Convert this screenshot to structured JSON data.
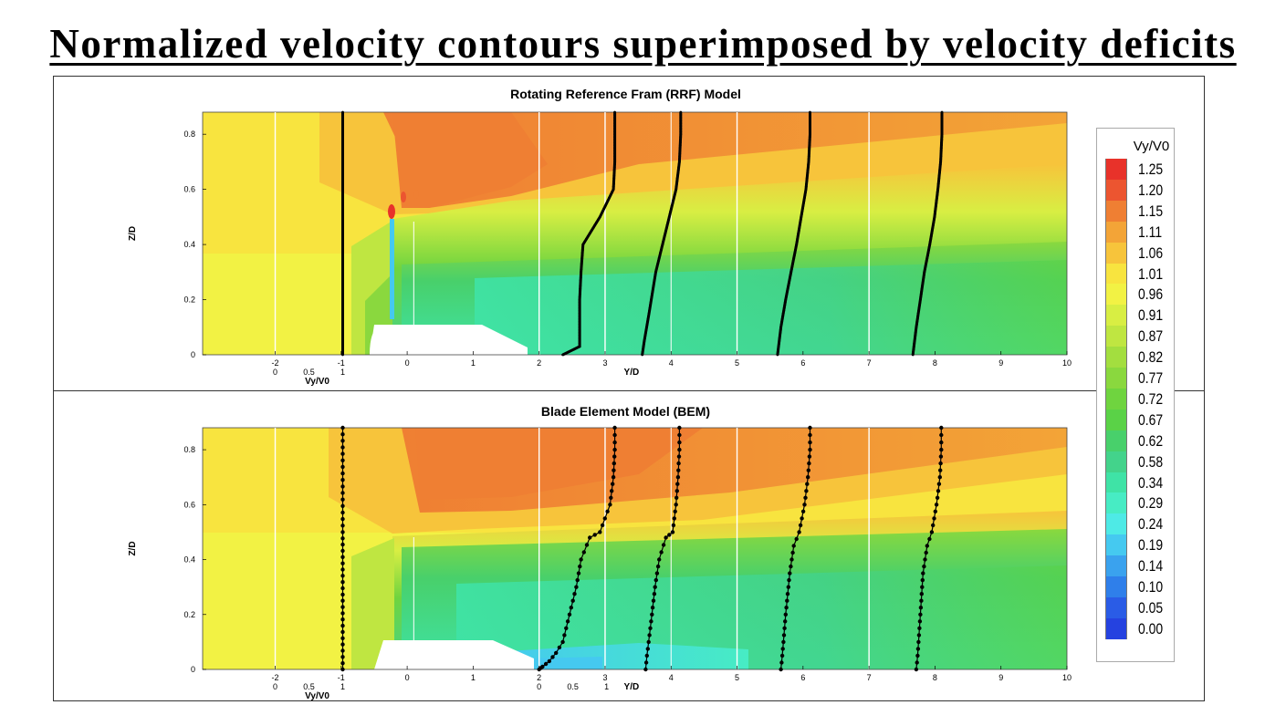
{
  "page_title": "Normalized velocity contours superimposed by velocity deficits",
  "colorbar": {
    "title": "Vy/V0",
    "levels": [
      "1.25",
      "1.20",
      "1.15",
      "1.11",
      "1.06",
      "1.01",
      "0.96",
      "0.91",
      "0.87",
      "0.82",
      "0.77",
      "0.72",
      "0.67",
      "0.62",
      "0.58",
      "0.34",
      "0.29",
      "0.24",
      "0.19",
      "0.14",
      "0.10",
      "0.05",
      "0.00"
    ],
    "colors": [
      "#e8322a",
      "#ec5530",
      "#ef7f33",
      "#f3a437",
      "#f7c43b",
      "#f8e43f",
      "#f2f244",
      "#d8ee43",
      "#bfe641",
      "#a3de3f",
      "#8ad83e",
      "#6fd43f",
      "#5ad247",
      "#48d06b",
      "#43d38b",
      "#3fe3a6",
      "#47ecc4",
      "#4eeae6",
      "#45c9f0",
      "#3aa2ee",
      "#2f7fea",
      "#2a5ce6",
      "#2542e0"
    ]
  },
  "chart_data": [
    {
      "type": "heatmap",
      "title": "Rotating Reference Fram (RRF) Model",
      "xlabel": "Y/D",
      "ylabel": "Z/D",
      "xlim": [
        -3.1,
        10
      ],
      "ylim": [
        0,
        0.88
      ],
      "x_ticks": [
        -2,
        -1,
        0,
        1,
        2,
        3,
        4,
        5,
        6,
        7,
        8,
        9,
        10
      ],
      "y_ticks": [
        "0",
        "0.2",
        "0.4",
        "0.6",
        "0.8"
      ],
      "profile_axis": {
        "label": "Vy/V0",
        "ticks": [
          "0",
          "0.5",
          "1"
        ]
      },
      "profile_stations": [
        -2,
        2,
        3,
        5,
        7
      ],
      "profiles": [
        {
          "station": -2,
          "points": [
            [
              1.0,
              0
            ],
            [
              1.0,
              0.5
            ],
            [
              1.0,
              0.88
            ]
          ]
        },
        {
          "station": 2,
          "points": [
            [
              0.35,
              0
            ],
            [
              0.6,
              0.03
            ],
            [
              0.6,
              0.1
            ],
            [
              0.6,
              0.2
            ],
            [
              0.62,
              0.3
            ],
            [
              0.65,
              0.4
            ],
            [
              0.9,
              0.5
            ],
            [
              1.1,
              0.6
            ],
            [
              1.12,
              0.7
            ],
            [
              1.12,
              0.8
            ],
            [
              1.12,
              0.88
            ]
          ]
        },
        {
          "station": 3,
          "points": [
            [
              0.55,
              0
            ],
            [
              0.58,
              0.05
            ],
            [
              0.65,
              0.15
            ],
            [
              0.75,
              0.3
            ],
            [
              0.85,
              0.4
            ],
            [
              0.95,
              0.5
            ],
            [
              1.05,
              0.6
            ],
            [
              1.1,
              0.7
            ],
            [
              1.12,
              0.8
            ],
            [
              1.12,
              0.88
            ]
          ]
        },
        {
          "station": 5,
          "points": [
            [
              0.6,
              0
            ],
            [
              0.65,
              0.1
            ],
            [
              0.72,
              0.2
            ],
            [
              0.8,
              0.3
            ],
            [
              0.88,
              0.4
            ],
            [
              0.95,
              0.5
            ],
            [
              1.02,
              0.6
            ],
            [
              1.06,
              0.7
            ],
            [
              1.08,
              0.8
            ],
            [
              1.08,
              0.88
            ]
          ]
        },
        {
          "station": 7,
          "points": [
            [
              0.65,
              0
            ],
            [
              0.7,
              0.1
            ],
            [
              0.76,
              0.2
            ],
            [
              0.82,
              0.3
            ],
            [
              0.9,
              0.4
            ],
            [
              0.97,
              0.5
            ],
            [
              1.02,
              0.6
            ],
            [
              1.06,
              0.7
            ],
            [
              1.08,
              0.8
            ],
            [
              1.08,
              0.88
            ]
          ]
        }
      ]
    },
    {
      "type": "heatmap",
      "title": "Blade Element Model (BEM)",
      "xlabel": "Y/D",
      "ylabel": "Z/D",
      "xlim": [
        -3.1,
        10
      ],
      "ylim": [
        0,
        0.88
      ],
      "x_ticks": [
        -2,
        -1,
        0,
        1,
        2,
        3,
        4,
        5,
        6,
        7,
        8,
        9,
        10
      ],
      "y_ticks": [
        "0",
        "0.2",
        "0.4",
        "0.6",
        "0.8"
      ],
      "profile_axis": {
        "label": "Vy/V0",
        "ticks": [
          "0",
          "0.5",
          "1"
        ]
      },
      "profile_stations": [
        -2,
        2,
        3,
        5,
        7
      ],
      "profiles": [
        {
          "station": -2,
          "points": [
            [
              1.0,
              0
            ],
            [
              1.0,
              0.5
            ],
            [
              1.0,
              0.88
            ]
          ]
        },
        {
          "station": 2,
          "points": [
            [
              0.0,
              0
            ],
            [
              0.05,
              0.01
            ],
            [
              0.15,
              0.03
            ],
            [
              0.25,
              0.06
            ],
            [
              0.35,
              0.1
            ],
            [
              0.45,
              0.2
            ],
            [
              0.55,
              0.3
            ],
            [
              0.62,
              0.4
            ],
            [
              0.75,
              0.48
            ],
            [
              0.9,
              0.5
            ],
            [
              1.05,
              0.6
            ],
            [
              1.1,
              0.7
            ],
            [
              1.12,
              0.8
            ],
            [
              1.12,
              0.88
            ]
          ]
        },
        {
          "station": 3,
          "points": [
            [
              0.6,
              0
            ],
            [
              0.62,
              0.05
            ],
            [
              0.67,
              0.15
            ],
            [
              0.74,
              0.3
            ],
            [
              0.8,
              0.4
            ],
            [
              0.9,
              0.48
            ],
            [
              1.0,
              0.5
            ],
            [
              1.05,
              0.6
            ],
            [
              1.08,
              0.7
            ],
            [
              1.1,
              0.8
            ],
            [
              1.1,
              0.88
            ]
          ]
        },
        {
          "station": 5,
          "points": [
            [
              0.65,
              0
            ],
            [
              0.67,
              0.05
            ],
            [
              0.72,
              0.2
            ],
            [
              0.78,
              0.35
            ],
            [
              0.84,
              0.45
            ],
            [
              0.92,
              0.5
            ],
            [
              1.0,
              0.6
            ],
            [
              1.05,
              0.7
            ],
            [
              1.08,
              0.8
            ],
            [
              1.08,
              0.88
            ]
          ]
        },
        {
          "station": 7,
          "points": [
            [
              0.7,
              0
            ],
            [
              0.72,
              0.05
            ],
            [
              0.76,
              0.2
            ],
            [
              0.8,
              0.35
            ],
            [
              0.86,
              0.45
            ],
            [
              0.93,
              0.5
            ],
            [
              1.0,
              0.6
            ],
            [
              1.05,
              0.7
            ],
            [
              1.07,
              0.8
            ],
            [
              1.07,
              0.88
            ]
          ]
        }
      ]
    }
  ]
}
